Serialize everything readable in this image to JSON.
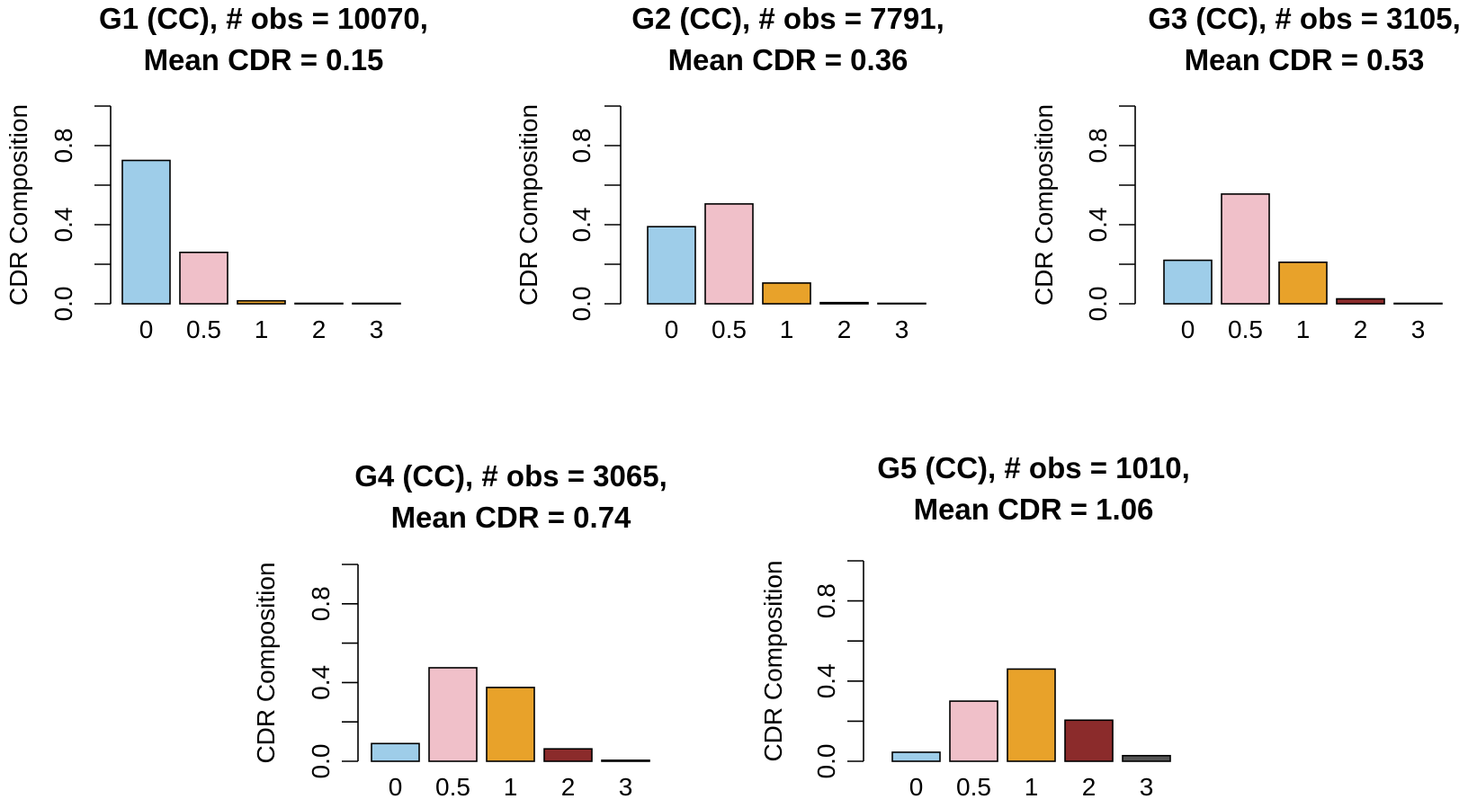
{
  "chart_data": [
    {
      "type": "bar",
      "title": [
        "G1 (CC), # obs = 10070,",
        "Mean CDR = 0.15"
      ],
      "ylabel": "CDR Composition",
      "categories": [
        "0",
        "0.5",
        "1",
        "2",
        "3"
      ],
      "values": [
        0.725,
        0.26,
        0.015,
        0.002,
        0.0
      ],
      "ylim": [
        0,
        1
      ],
      "yticks": [
        "0.0",
        "0.4",
        "0.8"
      ],
      "colors": [
        "#9ecde9",
        "#f0c0c9",
        "#e8a22a",
        "#8b2b2b",
        "#555555"
      ]
    },
    {
      "type": "bar",
      "title": [
        "G2 (CC), # obs = 7791,",
        "Mean CDR = 0.36"
      ],
      "ylabel": "CDR Composition",
      "categories": [
        "0",
        "0.5",
        "1",
        "2",
        "3"
      ],
      "values": [
        0.39,
        0.505,
        0.105,
        0.006,
        0.0
      ],
      "ylim": [
        0,
        1
      ],
      "yticks": [
        "0.0",
        "0.4",
        "0.8"
      ],
      "colors": [
        "#9ecde9",
        "#f0c0c9",
        "#e8a22a",
        "#8b2b2b",
        "#555555"
      ]
    },
    {
      "type": "bar",
      "title": [
        "G3 (CC), # obs = 3105,",
        "Mean CDR = 0.53"
      ],
      "ylabel": "CDR Composition",
      "categories": [
        "0",
        "0.5",
        "1",
        "2",
        "3"
      ],
      "values": [
        0.22,
        0.555,
        0.21,
        0.025,
        0.002
      ],
      "ylim": [
        0,
        1
      ],
      "yticks": [
        "0.0",
        "0.4",
        "0.8"
      ],
      "colors": [
        "#9ecde9",
        "#f0c0c9",
        "#e8a22a",
        "#8b2b2b",
        "#555555"
      ]
    },
    {
      "type": "bar",
      "title": [
        "G4 (CC), # obs = 3065,",
        "Mean CDR = 0.74"
      ],
      "ylabel": "CDR Composition",
      "categories": [
        "0",
        "0.5",
        "1",
        "2",
        "3"
      ],
      "values": [
        0.09,
        0.475,
        0.375,
        0.063,
        0.005
      ],
      "ylim": [
        0,
        1
      ],
      "yticks": [
        "0.0",
        "0.4",
        "0.8"
      ],
      "colors": [
        "#9ecde9",
        "#f0c0c9",
        "#e8a22a",
        "#8b2b2b",
        "#555555"
      ]
    },
    {
      "type": "bar",
      "title": [
        "G5 (CC), # obs = 1010,",
        "Mean CDR = 1.06"
      ],
      "ylabel": "CDR Composition",
      "categories": [
        "0",
        "0.5",
        "1",
        "2",
        "3"
      ],
      "values": [
        0.045,
        0.3,
        0.46,
        0.205,
        0.028
      ],
      "ylim": [
        0,
        1
      ],
      "yticks": [
        "0.0",
        "0.4",
        "0.8"
      ],
      "colors": [
        "#9ecde9",
        "#f0c0c9",
        "#e8a22a",
        "#8b2b2b",
        "#555555"
      ]
    }
  ]
}
